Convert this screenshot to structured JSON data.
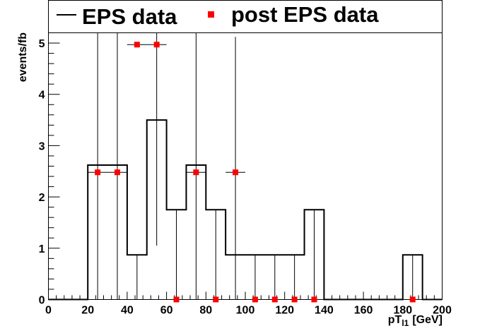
{
  "chart_data": {
    "type": "histogram",
    "xlabel": "pT",
    "xlabel_sub": "l1",
    "xlabel_unit": "[GeV]",
    "ylabel": "events/fb",
    "xlim": [
      0,
      200
    ],
    "ylim": [
      0,
      5.2
    ],
    "x_ticks": [
      "0",
      "20",
      "40",
      "60",
      "80",
      "100",
      "120",
      "140",
      "160",
      "180",
      "200"
    ],
    "y_ticks": [
      "0",
      "1",
      "2",
      "3",
      "4",
      "5"
    ],
    "legend": {
      "position": "top",
      "entries": [
        "EPS data",
        "post EPS data"
      ]
    },
    "colors": {
      "eps": "#000000",
      "post_eps": "#ff0000"
    },
    "series": [
      {
        "name": "EPS data",
        "style": "step-with-errorbars",
        "bin_width": 10,
        "bin_low_edges": [
          0,
          10,
          20,
          30,
          40,
          50,
          60,
          70,
          80,
          90,
          100,
          110,
          120,
          130,
          140,
          150,
          160,
          170,
          180,
          190
        ],
        "values": [
          0,
          0,
          2.62,
          2.62,
          0.87,
          3.5,
          1.75,
          2.62,
          1.75,
          0.87,
          0.87,
          0.87,
          0.87,
          1.75,
          0,
          0,
          0,
          0,
          0.87,
          0
        ],
        "err_low": [
          0,
          0,
          2.62,
          2.62,
          0.87,
          2.45,
          1.75,
          2.62,
          1.75,
          0.87,
          0.87,
          0.87,
          0.87,
          1.75,
          0,
          0,
          0,
          0,
          0.87,
          0
        ],
        "err_high": [
          0,
          0,
          2.6,
          2.6,
          0,
          1.7,
          0,
          2.6,
          0,
          4.25,
          0,
          0,
          0,
          0,
          0,
          0,
          0,
          0,
          0,
          0
        ]
      },
      {
        "name": "post EPS data",
        "style": "markers",
        "x": [
          25,
          35,
          45,
          55,
          65,
          75,
          85,
          95,
          105,
          115,
          125,
          135,
          185
        ],
        "y": [
          2.48,
          2.48,
          4.97,
          4.97,
          0,
          2.48,
          0,
          2.48,
          0,
          0,
          0,
          0,
          0
        ],
        "x_err": [
          5,
          5,
          5,
          5,
          0,
          5,
          0,
          5,
          0,
          0,
          0,
          0,
          0
        ]
      }
    ]
  }
}
